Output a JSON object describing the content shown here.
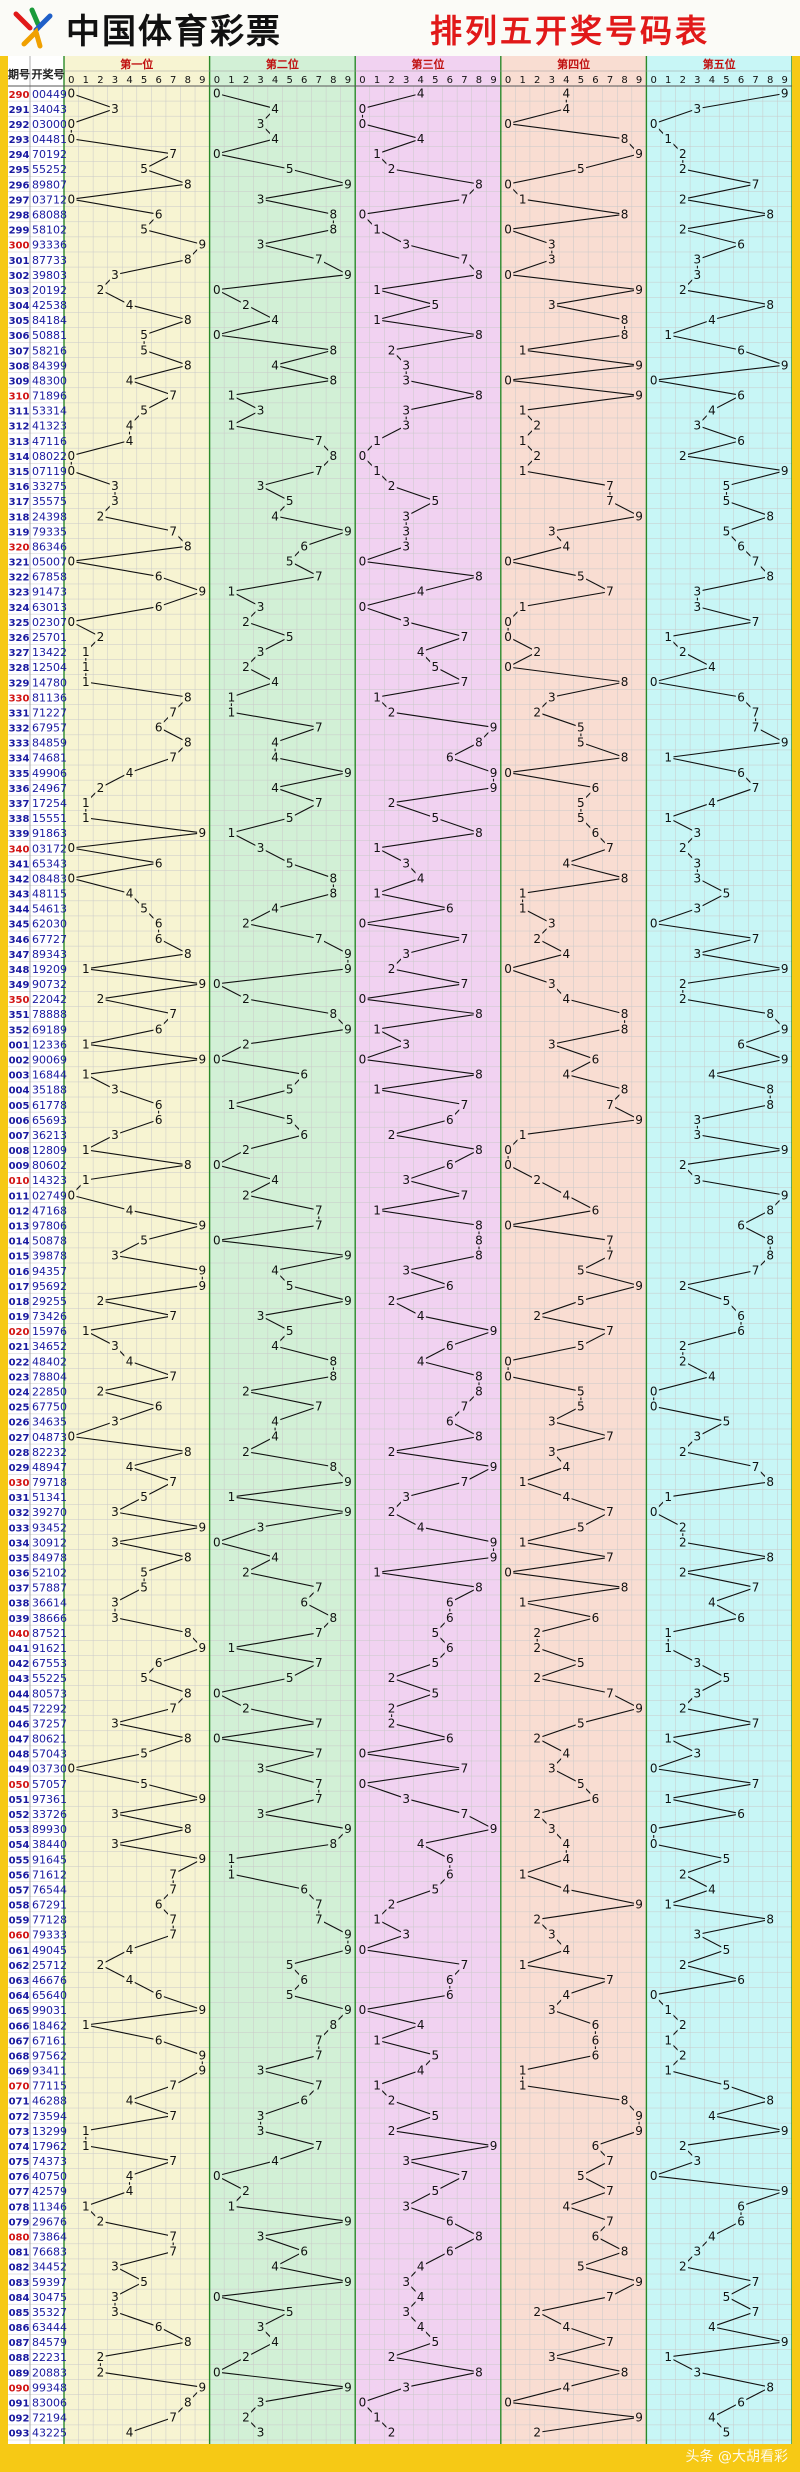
{
  "header": {
    "brand": "中国体育彩票",
    "title": "排列五开奖号码表",
    "col_issue": "期号",
    "col_number": "开奖号"
  },
  "watermark": "头条 @大胡看彩",
  "colors": {
    "background": "#f6c915",
    "title_red": "#e11919",
    "pos1": "#f7f4d2",
    "pos2": "#d2f0d6",
    "pos3": "#f1d2f1",
    "pos4": "#f9ddd2",
    "pos5": "#c8f6f6",
    "line": "#111111",
    "issue_blue": "#1a1aa0",
    "issue_red": "#d21414"
  },
  "chart_data": {
    "type": "line",
    "title": "排列五开奖号码表",
    "section_labels": [
      "第一位",
      "第二位",
      "第三位",
      "第四位",
      "第五位"
    ],
    "digit_ticks": [
      "0",
      "1",
      "2",
      "3",
      "4",
      "5",
      "6",
      "7",
      "8",
      "9"
    ],
    "ylim": [
      0,
      9
    ],
    "issues": [
      "290",
      "291",
      "292",
      "293",
      "294",
      "295",
      "296",
      "297",
      "298",
      "299",
      "300",
      "301",
      "302",
      "303",
      "304",
      "305",
      "306",
      "307",
      "308",
      "309",
      "310",
      "311",
      "312",
      "313",
      "314",
      "315",
      "316",
      "317",
      "318",
      "319",
      "320",
      "321",
      "322",
      "323",
      "324",
      "325",
      "326",
      "327",
      "328",
      "329",
      "330",
      "331",
      "332",
      "333",
      "334",
      "335",
      "336",
      "337",
      "338",
      "339",
      "340",
      "341",
      "342",
      "343",
      "344",
      "345",
      "346",
      "347",
      "348",
      "349",
      "350",
      "351",
      "352",
      "001",
      "002",
      "003",
      "004",
      "005",
      "006",
      "007",
      "008",
      "009",
      "010",
      "011",
      "012",
      "013",
      "014",
      "015",
      "016",
      "017",
      "018",
      "019",
      "020",
      "021",
      "022",
      "023",
      "024",
      "025",
      "026",
      "027",
      "028",
      "029",
      "030",
      "031",
      "032",
      "033",
      "034",
      "035",
      "036",
      "037",
      "038",
      "039",
      "040",
      "041",
      "042",
      "043",
      "044",
      "045",
      "046",
      "047",
      "048",
      "049",
      "050",
      "051",
      "052",
      "053",
      "054",
      "055",
      "056",
      "057",
      "058",
      "059",
      "060",
      "061",
      "062",
      "063",
      "064",
      "065",
      "066",
      "067",
      "068",
      "069",
      "070",
      "071",
      "072",
      "073",
      "074",
      "075",
      "076",
      "077",
      "078",
      "079",
      "080",
      "081",
      "082",
      "083",
      "084",
      "085",
      "086",
      "087",
      "088",
      "089",
      "090",
      "091",
      "092",
      "093"
    ],
    "numbers": [
      "00449",
      "34043",
      "03000",
      "04481",
      "70192",
      "55252",
      "89807",
      "03712",
      "68088",
      "58102",
      "93336",
      "87733",
      "39803",
      "20192",
      "42538",
      "84184",
      "50881",
      "58216",
      "84399",
      "48300",
      "71896",
      "53314",
      "41323",
      "47116",
      "08022",
      "07119",
      "33275",
      "35575",
      "24398",
      "79335",
      "86346",
      "05007",
      "67858",
      "91473",
      "63013",
      "02307",
      "25701",
      "13422",
      "12504",
      "14780",
      "81136",
      "71227",
      "67957",
      "84859",
      "74681",
      "49906",
      "24967",
      "17254",
      "15551",
      "91863",
      "03172",
      "65343",
      "08483",
      "48115",
      "54613",
      "62030",
      "67727",
      "89343",
      "19209",
      "90732",
      "22042",
      "78888",
      "69189",
      "12336",
      "90069",
      "16844",
      "35188",
      "61778",
      "65693",
      "36213",
      "12809",
      "80602",
      "14323",
      "02749",
      "47168",
      "97806",
      "50878",
      "39878",
      "94357",
      "95692",
      "29255",
      "73426",
      "15976",
      "34652",
      "48402",
      "78804",
      "22850",
      "67750",
      "34635",
      "04873",
      "82232",
      "48947",
      "79718",
      "51341",
      "39270",
      "93452",
      "30912",
      "84978",
      "52102",
      "57887",
      "36614",
      "38666",
      "87521",
      "91621",
      "67553",
      "55225",
      "80573",
      "72292",
      "37257",
      "80621",
      "57043",
      "03730",
      "57057",
      "97361",
      "33726",
      "89930",
      "38440",
      "91645",
      "71612",
      "76544",
      "67291",
      "77128",
      "79333",
      "49045",
      "25712",
      "46676",
      "65640",
      "99031",
      "18462",
      "67161",
      "97562",
      "93411",
      "77115",
      "46288",
      "73594",
      "13299",
      "17962",
      "74373",
      "40750",
      "42579",
      "11346",
      "29676",
      "73864",
      "76683",
      "34452",
      "59397",
      "30475",
      "35327",
      "63444",
      "84579",
      "22231",
      "20883",
      "99348",
      "83006",
      "72194",
      "43225"
    ]
  }
}
